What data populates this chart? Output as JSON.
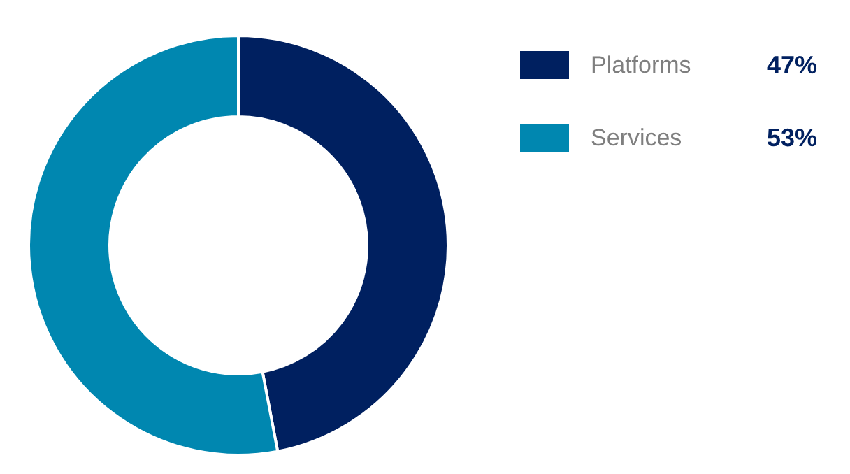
{
  "chart_data": {
    "type": "donut",
    "categories": [
      "Platforms",
      "Services"
    ],
    "values": [
      47,
      53
    ],
    "colors": [
      "#002060",
      "#0087b0"
    ],
    "value_labels": [
      "47%",
      "53%"
    ],
    "legend": "top right"
  }
}
